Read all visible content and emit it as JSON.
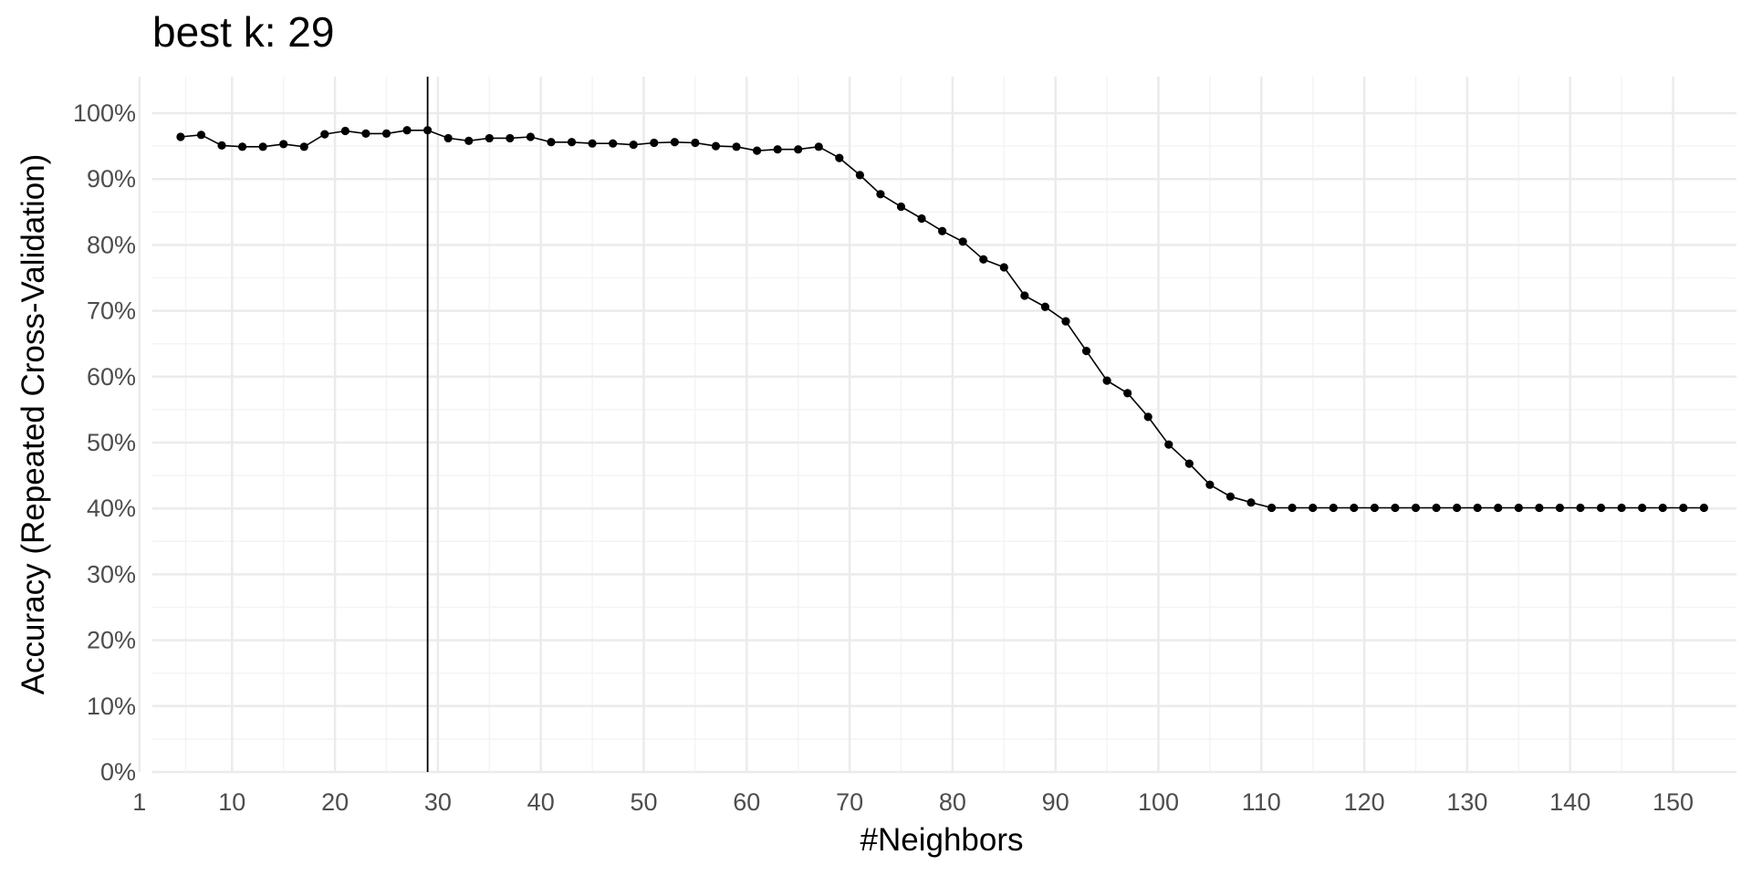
{
  "chart_data": {
    "type": "line",
    "title": "best k: 29",
    "xlabel": "#Neighbors",
    "ylabel": "Accuracy (Repeated Cross-Validation)",
    "xlim": [
      0,
      153
    ],
    "ylim": [
      0,
      1.05
    ],
    "x_ticks": [
      1,
      10,
      20,
      30,
      40,
      50,
      60,
      70,
      80,
      90,
      100,
      110,
      120,
      130,
      140,
      150
    ],
    "y_ticks": [
      0,
      0.1,
      0.2,
      0.3,
      0.4,
      0.5,
      0.6,
      0.7,
      0.8,
      0.9,
      1.0
    ],
    "y_tick_labels": [
      "0%",
      "10%",
      "20%",
      "30%",
      "40%",
      "50%",
      "60%",
      "70%",
      "80%",
      "90%",
      "100%"
    ],
    "best_k": 29,
    "grid": true,
    "legend": "none",
    "colors": {
      "line": "#000000",
      "grid_major": "#ebebeb",
      "grid_minor": "#f4f4f4",
      "tick_text": "#4d4d4d"
    },
    "series": [
      {
        "x": [
          5,
          7,
          9,
          11,
          13,
          15,
          17,
          19,
          21,
          23,
          25,
          27,
          29,
          31,
          33,
          35,
          37,
          39,
          41,
          43,
          45,
          47,
          49,
          51,
          53,
          55,
          57,
          59,
          61,
          63,
          65,
          67,
          69,
          71,
          73,
          75,
          77,
          79,
          81,
          83,
          85,
          87,
          89,
          91,
          93,
          95,
          97,
          99,
          101,
          103,
          105,
          107,
          109,
          111,
          113,
          115,
          117,
          119,
          121,
          123,
          125,
          127,
          129,
          131,
          133,
          135,
          137,
          139,
          141,
          143,
          145,
          147,
          149,
          151,
          153
        ],
        "values": [
          0.964,
          0.967,
          0.951,
          0.949,
          0.949,
          0.953,
          0.949,
          0.968,
          0.973,
          0.969,
          0.969,
          0.974,
          0.974,
          0.962,
          0.958,
          0.962,
          0.962,
          0.964,
          0.956,
          0.956,
          0.954,
          0.954,
          0.952,
          0.955,
          0.956,
          0.955,
          0.95,
          0.949,
          0.943,
          0.945,
          0.945,
          0.949,
          0.932,
          0.906,
          0.877,
          0.858,
          0.84,
          0.821,
          0.805,
          0.778,
          0.766,
          0.723,
          0.706,
          0.684,
          0.639,
          0.594,
          0.575,
          0.539,
          0.497,
          0.468,
          0.436,
          0.418,
          0.409,
          0.401,
          0.401,
          0.401,
          0.401,
          0.401,
          0.401,
          0.401,
          0.401,
          0.401,
          0.401,
          0.401,
          0.401,
          0.401,
          0.401,
          0.401,
          0.401,
          0.401,
          0.401,
          0.401,
          0.401,
          0.401,
          0.401
        ]
      }
    ]
  }
}
